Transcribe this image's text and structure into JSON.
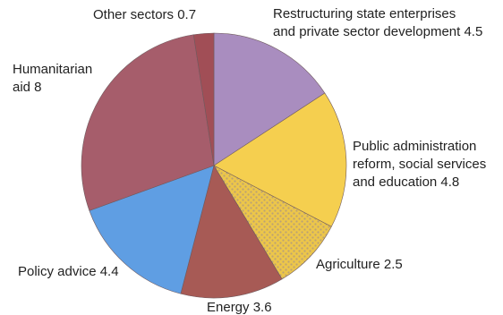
{
  "chart_data": {
    "type": "pie",
    "start_angle_deg": 0,
    "direction": "clockwise",
    "slices": [
      {
        "name": "Restructuring state enterprises and private sector development",
        "label_lines": [
          "Restructuring state enterprises",
          "and private sector development 4.5"
        ],
        "value": 4.5,
        "color": "#a98dbf",
        "pattern": "none"
      },
      {
        "name": "Public administration reform, social services and education",
        "label_lines": [
          "Public administration",
          "reform, social services",
          "and education 4.8"
        ],
        "value": 4.8,
        "color": "#f5cf4f",
        "pattern": "none"
      },
      {
        "name": "Agriculture",
        "label_lines": [
          "Agriculture 2.5"
        ],
        "value": 2.5,
        "color": "#ecc64a",
        "pattern": "dots"
      },
      {
        "name": "Energy",
        "label_lines": [
          "Energy 3.6"
        ],
        "value": 3.6,
        "color": "#a75a55",
        "pattern": "none"
      },
      {
        "name": "Policy advice",
        "label_lines": [
          "Policy advice 4.4"
        ],
        "value": 4.4,
        "color": "#5f9ee3",
        "pattern": "none"
      },
      {
        "name": "Humanitarian aid",
        "label_lines": [
          "Humanitarian",
          "aid 8"
        ],
        "value": 8,
        "color": "#a65d6b",
        "pattern": "none"
      },
      {
        "name": "Other sectors",
        "label_lines": [
          "Other sectors 0.7"
        ],
        "value": 0.7,
        "color": "#a14e56",
        "pattern": "none"
      }
    ]
  }
}
